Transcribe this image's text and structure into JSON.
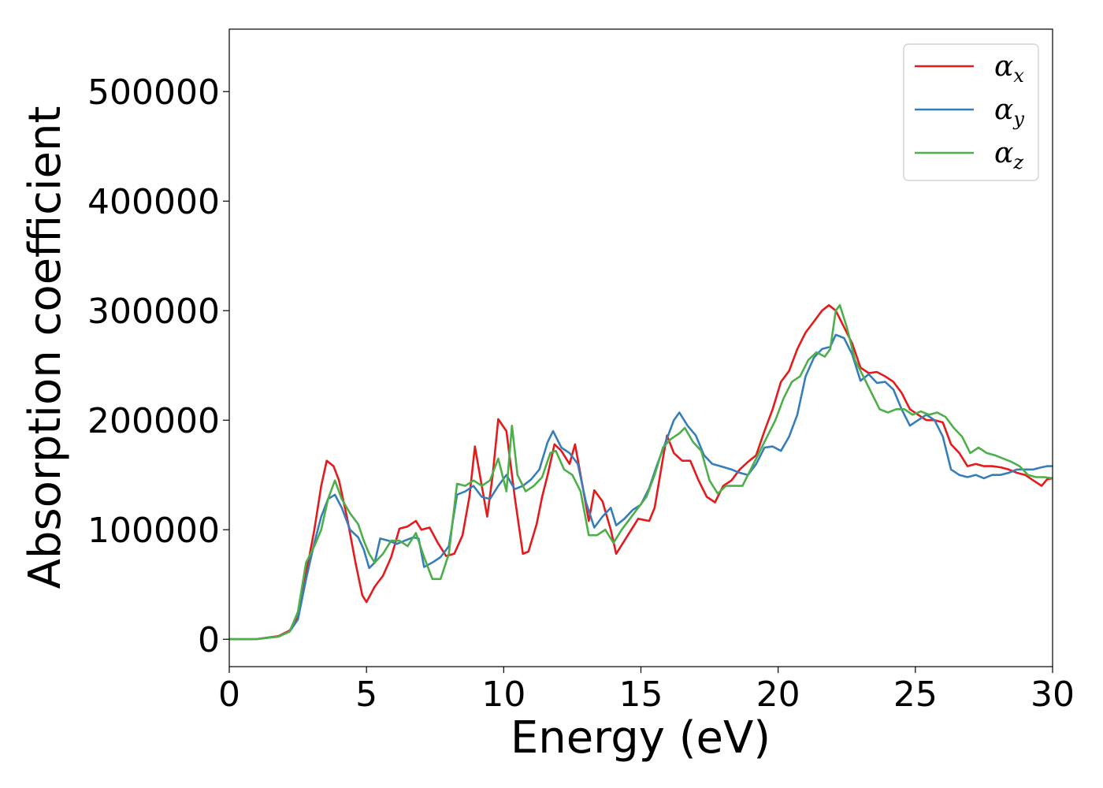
{
  "chart_data": {
    "type": "line",
    "xlabel": "Energy (eV)",
    "ylabel": "Absorption coefficient",
    "xlim": [
      0,
      30
    ],
    "ylim": [
      -25000,
      557000
    ],
    "x_ticks": [
      0,
      5,
      10,
      15,
      20,
      25,
      30
    ],
    "y_ticks": [
      0,
      100000,
      200000,
      300000,
      400000,
      500000
    ],
    "grid": false,
    "legend_position": "top-right",
    "series": [
      {
        "name": "α",
        "name_subscript": "x",
        "color": "#e41a1c",
        "points": [
          [
            0,
            0
          ],
          [
            1,
            200
          ],
          [
            1.8,
            3000
          ],
          [
            2.2,
            8000
          ],
          [
            2.5,
            20000
          ],
          [
            2.8,
            60000
          ],
          [
            3.1,
            100000
          ],
          [
            3.35,
            140000
          ],
          [
            3.55,
            163000
          ],
          [
            3.8,
            158000
          ],
          [
            4.0,
            145000
          ],
          [
            4.3,
            110000
          ],
          [
            4.6,
            70000
          ],
          [
            4.85,
            40000
          ],
          [
            5.0,
            34000
          ],
          [
            5.3,
            48000
          ],
          [
            5.6,
            58000
          ],
          [
            5.9,
            75000
          ],
          [
            6.2,
            101000
          ],
          [
            6.5,
            103000
          ],
          [
            6.8,
            108000
          ],
          [
            7.0,
            100000
          ],
          [
            7.3,
            102000
          ],
          [
            7.6,
            88000
          ],
          [
            7.9,
            76000
          ],
          [
            8.2,
            78000
          ],
          [
            8.5,
            95000
          ],
          [
            8.75,
            130000
          ],
          [
            8.95,
            176000
          ],
          [
            9.2,
            140000
          ],
          [
            9.4,
            112000
          ],
          [
            9.6,
            150000
          ],
          [
            9.8,
            201000
          ],
          [
            10.1,
            190000
          ],
          [
            10.4,
            130000
          ],
          [
            10.7,
            78000
          ],
          [
            10.9,
            80000
          ],
          [
            11.2,
            105000
          ],
          [
            11.4,
            130000
          ],
          [
            11.6,
            150000
          ],
          [
            11.85,
            178000
          ],
          [
            12.1,
            172000
          ],
          [
            12.4,
            160000
          ],
          [
            12.6,
            178000
          ],
          [
            12.8,
            150000
          ],
          [
            13.1,
            108000
          ],
          [
            13.3,
            136000
          ],
          [
            13.6,
            126000
          ],
          [
            13.9,
            100000
          ],
          [
            14.1,
            78000
          ],
          [
            14.4,
            90000
          ],
          [
            14.7,
            102000
          ],
          [
            14.9,
            110000
          ],
          [
            15.3,
            108000
          ],
          [
            15.5,
            120000
          ],
          [
            15.8,
            165000
          ],
          [
            15.95,
            186000
          ],
          [
            16.2,
            170000
          ],
          [
            16.5,
            163000
          ],
          [
            16.8,
            163000
          ],
          [
            17.1,
            145000
          ],
          [
            17.4,
            130000
          ],
          [
            17.7,
            125000
          ],
          [
            18.0,
            140000
          ],
          [
            18.3,
            145000
          ],
          [
            18.6,
            155000
          ],
          [
            18.9,
            162000
          ],
          [
            19.2,
            168000
          ],
          [
            19.5,
            190000
          ],
          [
            19.8,
            210000
          ],
          [
            20.1,
            235000
          ],
          [
            20.4,
            245000
          ],
          [
            20.7,
            265000
          ],
          [
            21.0,
            280000
          ],
          [
            21.3,
            290000
          ],
          [
            21.6,
            300000
          ],
          [
            21.85,
            305000
          ],
          [
            22.1,
            300000
          ],
          [
            22.4,
            285000
          ],
          [
            22.7,
            270000
          ],
          [
            23.0,
            248000
          ],
          [
            23.3,
            243000
          ],
          [
            23.6,
            244000
          ],
          [
            23.9,
            240000
          ],
          [
            24.2,
            235000
          ],
          [
            24.5,
            225000
          ],
          [
            24.8,
            210000
          ],
          [
            25.1,
            205000
          ],
          [
            25.4,
            200000
          ],
          [
            25.7,
            200000
          ],
          [
            26.0,
            198000
          ],
          [
            26.3,
            178000
          ],
          [
            26.6,
            170000
          ],
          [
            26.9,
            158000
          ],
          [
            27.2,
            160000
          ],
          [
            27.5,
            158000
          ],
          [
            27.8,
            158000
          ],
          [
            28.1,
            157000
          ],
          [
            28.4,
            155000
          ],
          [
            28.7,
            152000
          ],
          [
            29.0,
            150000
          ],
          [
            29.3,
            145000
          ],
          [
            29.6,
            140000
          ],
          [
            29.8,
            146000
          ],
          [
            30.0,
            147000
          ]
        ]
      },
      {
        "name": "α",
        "name_subscript": "y",
        "color": "#377eb8",
        "points": [
          [
            0,
            0
          ],
          [
            1,
            200
          ],
          [
            1.8,
            2500
          ],
          [
            2.2,
            7000
          ],
          [
            2.5,
            18000
          ],
          [
            2.8,
            55000
          ],
          [
            3.1,
            88000
          ],
          [
            3.35,
            112000
          ],
          [
            3.6,
            128000
          ],
          [
            3.85,
            132000
          ],
          [
            4.1,
            120000
          ],
          [
            4.4,
            100000
          ],
          [
            4.7,
            93000
          ],
          [
            4.9,
            82000
          ],
          [
            5.1,
            65000
          ],
          [
            5.3,
            70000
          ],
          [
            5.5,
            92000
          ],
          [
            5.8,
            90000
          ],
          [
            6.1,
            87000
          ],
          [
            6.4,
            90000
          ],
          [
            6.7,
            93000
          ],
          [
            6.9,
            92000
          ],
          [
            7.1,
            66000
          ],
          [
            7.4,
            70000
          ],
          [
            7.7,
            75000
          ],
          [
            8.0,
            85000
          ],
          [
            8.3,
            132000
          ],
          [
            8.6,
            135000
          ],
          [
            8.9,
            140000
          ],
          [
            9.2,
            130000
          ],
          [
            9.5,
            128000
          ],
          [
            9.8,
            140000
          ],
          [
            10.1,
            150000
          ],
          [
            10.4,
            137000
          ],
          [
            10.7,
            140000
          ],
          [
            11.0,
            146000
          ],
          [
            11.3,
            155000
          ],
          [
            11.6,
            180000
          ],
          [
            11.8,
            190000
          ],
          [
            12.1,
            175000
          ],
          [
            12.4,
            170000
          ],
          [
            12.7,
            160000
          ],
          [
            13.0,
            125000
          ],
          [
            13.3,
            102000
          ],
          [
            13.6,
            112000
          ],
          [
            13.9,
            120000
          ],
          [
            14.1,
            104000
          ],
          [
            14.4,
            110000
          ],
          [
            14.7,
            118000
          ],
          [
            15.0,
            123000
          ],
          [
            15.3,
            138000
          ],
          [
            15.6,
            160000
          ],
          [
            15.9,
            180000
          ],
          [
            16.2,
            200000
          ],
          [
            16.4,
            207000
          ],
          [
            16.7,
            195000
          ],
          [
            17.0,
            186000
          ],
          [
            17.3,
            168000
          ],
          [
            17.6,
            160000
          ],
          [
            17.9,
            158000
          ],
          [
            18.3,
            155000
          ],
          [
            18.6,
            152000
          ],
          [
            18.9,
            150000
          ],
          [
            19.2,
            160000
          ],
          [
            19.5,
            175000
          ],
          [
            19.8,
            176000
          ],
          [
            20.1,
            172000
          ],
          [
            20.4,
            185000
          ],
          [
            20.7,
            205000
          ],
          [
            21.0,
            240000
          ],
          [
            21.3,
            257000
          ],
          [
            21.6,
            265000
          ],
          [
            21.9,
            267000
          ],
          [
            22.1,
            278000
          ],
          [
            22.4,
            275000
          ],
          [
            22.7,
            260000
          ],
          [
            23.0,
            236000
          ],
          [
            23.3,
            242000
          ],
          [
            23.6,
            234000
          ],
          [
            23.9,
            235000
          ],
          [
            24.2,
            228000
          ],
          [
            24.5,
            210000
          ],
          [
            24.8,
            195000
          ],
          [
            25.1,
            200000
          ],
          [
            25.4,
            205000
          ],
          [
            25.7,
            200000
          ],
          [
            26.0,
            185000
          ],
          [
            26.3,
            155000
          ],
          [
            26.6,
            150000
          ],
          [
            26.9,
            148000
          ],
          [
            27.2,
            150000
          ],
          [
            27.5,
            147000
          ],
          [
            27.8,
            150000
          ],
          [
            28.1,
            150000
          ],
          [
            28.4,
            152000
          ],
          [
            28.7,
            155000
          ],
          [
            29.0,
            155000
          ],
          [
            29.3,
            155000
          ],
          [
            29.6,
            157000
          ],
          [
            29.8,
            158000
          ],
          [
            30.0,
            158000
          ]
        ]
      },
      {
        "name": "α",
        "name_subscript": "z",
        "color": "#4daf4a",
        "points": [
          [
            0,
            0
          ],
          [
            1,
            200
          ],
          [
            1.8,
            2500
          ],
          [
            2.2,
            7000
          ],
          [
            2.5,
            25000
          ],
          [
            2.8,
            70000
          ],
          [
            3.1,
            85000
          ],
          [
            3.35,
            100000
          ],
          [
            3.6,
            128000
          ],
          [
            3.85,
            145000
          ],
          [
            4.1,
            128000
          ],
          [
            4.4,
            115000
          ],
          [
            4.7,
            105000
          ],
          [
            4.9,
            90000
          ],
          [
            5.1,
            78000
          ],
          [
            5.3,
            70000
          ],
          [
            5.6,
            78000
          ],
          [
            5.9,
            90000
          ],
          [
            6.2,
            90000
          ],
          [
            6.5,
            85000
          ],
          [
            6.8,
            97000
          ],
          [
            7.1,
            75000
          ],
          [
            7.4,
            55000
          ],
          [
            7.7,
            55000
          ],
          [
            8.0,
            78000
          ],
          [
            8.3,
            142000
          ],
          [
            8.6,
            140000
          ],
          [
            8.9,
            145000
          ],
          [
            9.2,
            140000
          ],
          [
            9.5,
            145000
          ],
          [
            9.8,
            165000
          ],
          [
            10.1,
            135000
          ],
          [
            10.3,
            195000
          ],
          [
            10.5,
            150000
          ],
          [
            10.8,
            135000
          ],
          [
            11.1,
            140000
          ],
          [
            11.4,
            148000
          ],
          [
            11.7,
            170000
          ],
          [
            11.9,
            172000
          ],
          [
            12.2,
            155000
          ],
          [
            12.5,
            150000
          ],
          [
            12.8,
            135000
          ],
          [
            13.1,
            95000
          ],
          [
            13.4,
            95000
          ],
          [
            13.7,
            100000
          ],
          [
            14.0,
            88000
          ],
          [
            14.3,
            100000
          ],
          [
            14.6,
            110000
          ],
          [
            14.9,
            120000
          ],
          [
            15.2,
            130000
          ],
          [
            15.5,
            150000
          ],
          [
            15.8,
            175000
          ],
          [
            16.1,
            183000
          ],
          [
            16.4,
            188000
          ],
          [
            16.6,
            193000
          ],
          [
            16.9,
            180000
          ],
          [
            17.2,
            172000
          ],
          [
            17.5,
            145000
          ],
          [
            17.8,
            133000
          ],
          [
            18.1,
            140000
          ],
          [
            18.4,
            140000
          ],
          [
            18.7,
            140000
          ],
          [
            19.0,
            155000
          ],
          [
            19.3,
            170000
          ],
          [
            19.6,
            185000
          ],
          [
            19.9,
            200000
          ],
          [
            20.2,
            220000
          ],
          [
            20.5,
            235000
          ],
          [
            20.8,
            240000
          ],
          [
            21.1,
            255000
          ],
          [
            21.4,
            262000
          ],
          [
            21.7,
            258000
          ],
          [
            21.9,
            265000
          ],
          [
            22.1,
            300000
          ],
          [
            22.25,
            305000
          ],
          [
            22.5,
            285000
          ],
          [
            22.8,
            255000
          ],
          [
            23.1,
            240000
          ],
          [
            23.4,
            225000
          ],
          [
            23.7,
            210000
          ],
          [
            24.0,
            207000
          ],
          [
            24.3,
            210000
          ],
          [
            24.6,
            210000
          ],
          [
            24.9,
            205000
          ],
          [
            25.2,
            208000
          ],
          [
            25.5,
            205000
          ],
          [
            25.8,
            207000
          ],
          [
            26.1,
            203000
          ],
          [
            26.4,
            193000
          ],
          [
            26.7,
            185000
          ],
          [
            27.0,
            170000
          ],
          [
            27.3,
            175000
          ],
          [
            27.6,
            170000
          ],
          [
            27.9,
            168000
          ],
          [
            28.2,
            165000
          ],
          [
            28.5,
            162000
          ],
          [
            28.8,
            158000
          ],
          [
            29.1,
            150000
          ],
          [
            29.4,
            148000
          ],
          [
            29.7,
            148000
          ],
          [
            30.0,
            147000
          ]
        ]
      }
    ]
  }
}
